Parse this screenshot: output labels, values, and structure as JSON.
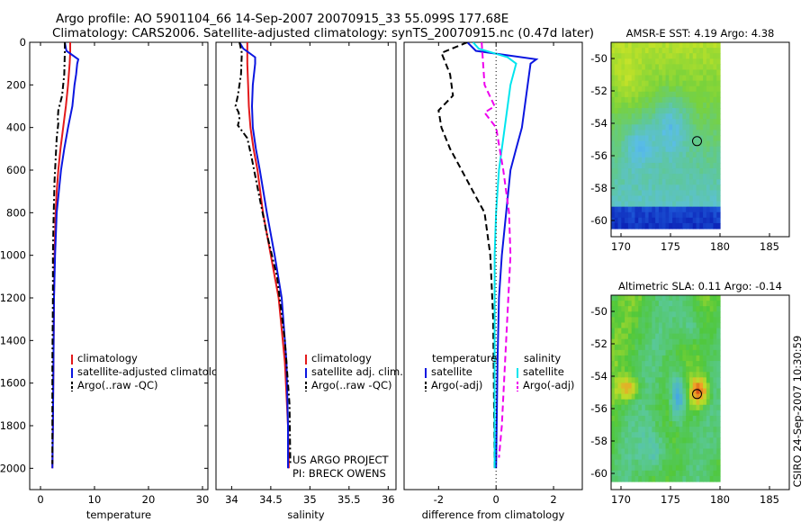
{
  "titles": {
    "line1": "Argo profile: AO 5901104_66 14-Sep-2007 20070915_33 55.099S 177.68E",
    "line2": "Climatology: CARS2006. Satellite-adjusted climatology: synTS_20070915.nc (0.47d later)"
  },
  "credits": {
    "project": "US ARGO PROJECT",
    "pi": "PI: BRECK OWENS",
    "stamp": "CSIRO 24-Sep-2007 10:30:59"
  },
  "colors": {
    "climatology": "#e31a1c",
    "satellite": "#0b16e0",
    "argo": "#000000",
    "sat_salinity": "#00e5ee",
    "argo_salinity": "#ee00ee"
  },
  "chart_data": [
    {
      "type": "line",
      "name": "temperature-profile",
      "xlabel": "temperature",
      "ylabel": "",
      "xlim": [
        -2,
        31
      ],
      "ylim": [
        2100,
        0
      ],
      "xticks": [
        0,
        10,
        20,
        30
      ],
      "yticks": [
        0,
        200,
        400,
        600,
        800,
        1000,
        1200,
        1400,
        1600,
        1800,
        2000
      ],
      "legend": [
        "climatology",
        "satellite-adjusted climatology",
        "Argo(..raw -QC)"
      ],
      "series": [
        {
          "name": "climatology",
          "style": "solid",
          "color": "#e31a1c",
          "x": [
            5.5,
            5.5,
            5.4,
            5.1,
            4.7,
            4.2,
            3.7,
            3.3,
            3.0,
            2.8,
            2.6,
            2.5,
            2.4,
            2.3,
            2.2
          ],
          "y": [
            0,
            50,
            100,
            200,
            300,
            400,
            500,
            600,
            700,
            800,
            1000,
            1200,
            1500,
            1800,
            2000
          ]
        },
        {
          "name": "satellite-adjusted climatology",
          "style": "solid",
          "color": "#0b16e0",
          "x": [
            4.5,
            4.8,
            7.0,
            6.8,
            6.6,
            6.3,
            5.9,
            5.1,
            4.4,
            3.8,
            3.4,
            3.0,
            2.7,
            2.5,
            2.4,
            2.3,
            2.2
          ],
          "y": [
            0,
            40,
            80,
            100,
            150,
            200,
            300,
            400,
            500,
            600,
            700,
            800,
            1000,
            1200,
            1500,
            1800,
            2000
          ]
        },
        {
          "name": "Argo(..raw -QC)",
          "style": "dashdot",
          "color": "#000000",
          "x": [
            4.5,
            4.5,
            4.4,
            4.0,
            3.3,
            3.2,
            3.3,
            3.0,
            2.8,
            2.6,
            2.5,
            2.4,
            2.3,
            2.3,
            2.2,
            2.2,
            2.2
          ],
          "y": [
            0,
            50,
            150,
            250,
            320,
            360,
            380,
            450,
            550,
            650,
            750,
            850,
            1000,
            1200,
            1500,
            1800,
            1980
          ]
        }
      ]
    },
    {
      "type": "line",
      "name": "salinity-profile",
      "xlabel": "salinity",
      "ylabel": "",
      "xlim": [
        33.8,
        36.1
      ],
      "ylim": [
        2100,
        0
      ],
      "xticks": [
        34,
        34.5,
        35,
        35.5,
        36
      ],
      "xtick_labels": [
        "34",
        "34.5",
        "35",
        "35.5",
        "36"
      ],
      "legend": [
        "climatology",
        "satellite adj. clim.",
        "Argo(..raw -QC)"
      ],
      "series": [
        {
          "name": "climatology",
          "style": "solid",
          "color": "#e31a1c",
          "x": [
            34.2,
            34.2,
            34.21,
            34.22,
            34.24,
            34.28,
            34.33,
            34.4,
            34.5,
            34.6,
            34.68,
            34.72,
            34.73
          ],
          "y": [
            0,
            100,
            200,
            300,
            400,
            500,
            600,
            800,
            1000,
            1200,
            1500,
            1800,
            2000
          ]
        },
        {
          "name": "satellite adj. clim.",
          "style": "solid",
          "color": "#0b16e0",
          "x": [
            34.1,
            34.15,
            34.3,
            34.3,
            34.27,
            34.26,
            34.27,
            34.31,
            34.36,
            34.45,
            34.55,
            34.64,
            34.7,
            34.72,
            34.72
          ],
          "y": [
            0,
            30,
            70,
            100,
            200,
            300,
            400,
            500,
            600,
            800,
            1000,
            1200,
            1500,
            1800,
            2000
          ]
        },
        {
          "name": "Argo(..raw -QC)",
          "style": "dashdot",
          "color": "#000000",
          "x": [
            34.1,
            34.13,
            34.12,
            34.08,
            34.05,
            34.09,
            34.1,
            34.08,
            34.2,
            34.26,
            34.34,
            34.45,
            34.58,
            34.68,
            34.74,
            34.75
          ],
          "y": [
            0,
            50,
            150,
            250,
            300,
            330,
            360,
            390,
            450,
            550,
            700,
            900,
            1100,
            1400,
            1700,
            1980
          ]
        }
      ]
    },
    {
      "type": "line",
      "name": "difference-profile",
      "xlabel": "difference from climatology",
      "ylabel": "",
      "xlim": [
        -3.2,
        3.0
      ],
      "ylim": [
        2100,
        0
      ],
      "xticks": [
        -2,
        0,
        2
      ],
      "legend": [
        "temperature",
        "satellite",
        "Argo(-adj)",
        "salinity",
        "satellite",
        "Argo(-adj)"
      ],
      "series": [
        {
          "name": "satellite (temperature)",
          "style": "solid",
          "color": "#0b16e0",
          "x": [
            -1.0,
            -0.7,
            1.4,
            1.2,
            1.1,
            1.0,
            0.9,
            0.7,
            0.5,
            0.35,
            0.2,
            0.1,
            0.05,
            0.0
          ],
          "y": [
            0,
            40,
            80,
            100,
            200,
            300,
            400,
            500,
            600,
            800,
            1000,
            1200,
            1500,
            2000
          ]
        },
        {
          "name": "Argo(-adj) (temperature)",
          "style": "dashed",
          "color": "#000000",
          "x": [
            -1.0,
            -1.9,
            -1.6,
            -1.5,
            -2.0,
            -1.9,
            -1.6,
            -1.2,
            -0.8,
            -0.4,
            -0.2,
            -0.1,
            -0.05
          ],
          "y": [
            0,
            50,
            150,
            250,
            320,
            400,
            500,
            600,
            700,
            800,
            1000,
            1300,
            2000
          ]
        },
        {
          "name": "satellite (salinity)",
          "style": "solid",
          "color": "#00e5ee",
          "x": [
            -0.8,
            -0.6,
            0.4,
            0.7,
            0.5,
            0.3,
            0.1,
            0.0,
            -0.05,
            -0.05,
            -0.05
          ],
          "y": [
            0,
            30,
            70,
            100,
            200,
            400,
            600,
            800,
            1000,
            1500,
            2000
          ]
        },
        {
          "name": "Argo(-adj) (salinity)",
          "style": "dashed",
          "color": "#ee00ee",
          "x": [
            -0.5,
            -0.45,
            -0.4,
            -0.05,
            -0.4,
            0.0,
            0.25,
            0.45,
            0.5,
            0.35,
            0.2,
            0.1
          ],
          "y": [
            0,
            100,
            200,
            300,
            330,
            400,
            600,
            800,
            1000,
            1400,
            1800,
            1950
          ]
        }
      ]
    },
    {
      "type": "heatmap",
      "name": "sst-map",
      "title": "AMSR-E SST: 4.19 Argo: 4.38",
      "xlim": [
        169,
        187
      ],
      "ylim": [
        -61,
        -49
      ],
      "xticks": [
        170,
        175,
        180,
        185
      ],
      "yticks": [
        -50,
        -52,
        -54,
        -56,
        -58,
        -60
      ],
      "data_extent": {
        "lon": [
          169,
          180
        ],
        "lat": [
          -60.5,
          -49
        ]
      },
      "marker": {
        "lon": 177.68,
        "lat": -55.1
      }
    },
    {
      "type": "heatmap",
      "name": "sla-map",
      "title": "Altimetric SLA: 0.11 Argo: -0.14",
      "xlim": [
        169,
        187
      ],
      "ylim": [
        -61,
        -49
      ],
      "xticks": [
        170,
        175,
        180,
        185
      ],
      "yticks": [
        -50,
        -52,
        -54,
        -56,
        -58,
        -60
      ],
      "data_extent": {
        "lon": [
          169,
          180
        ],
        "lat": [
          -60.5,
          -49
        ]
      },
      "marker": {
        "lon": 177.68,
        "lat": -55.1
      }
    }
  ]
}
